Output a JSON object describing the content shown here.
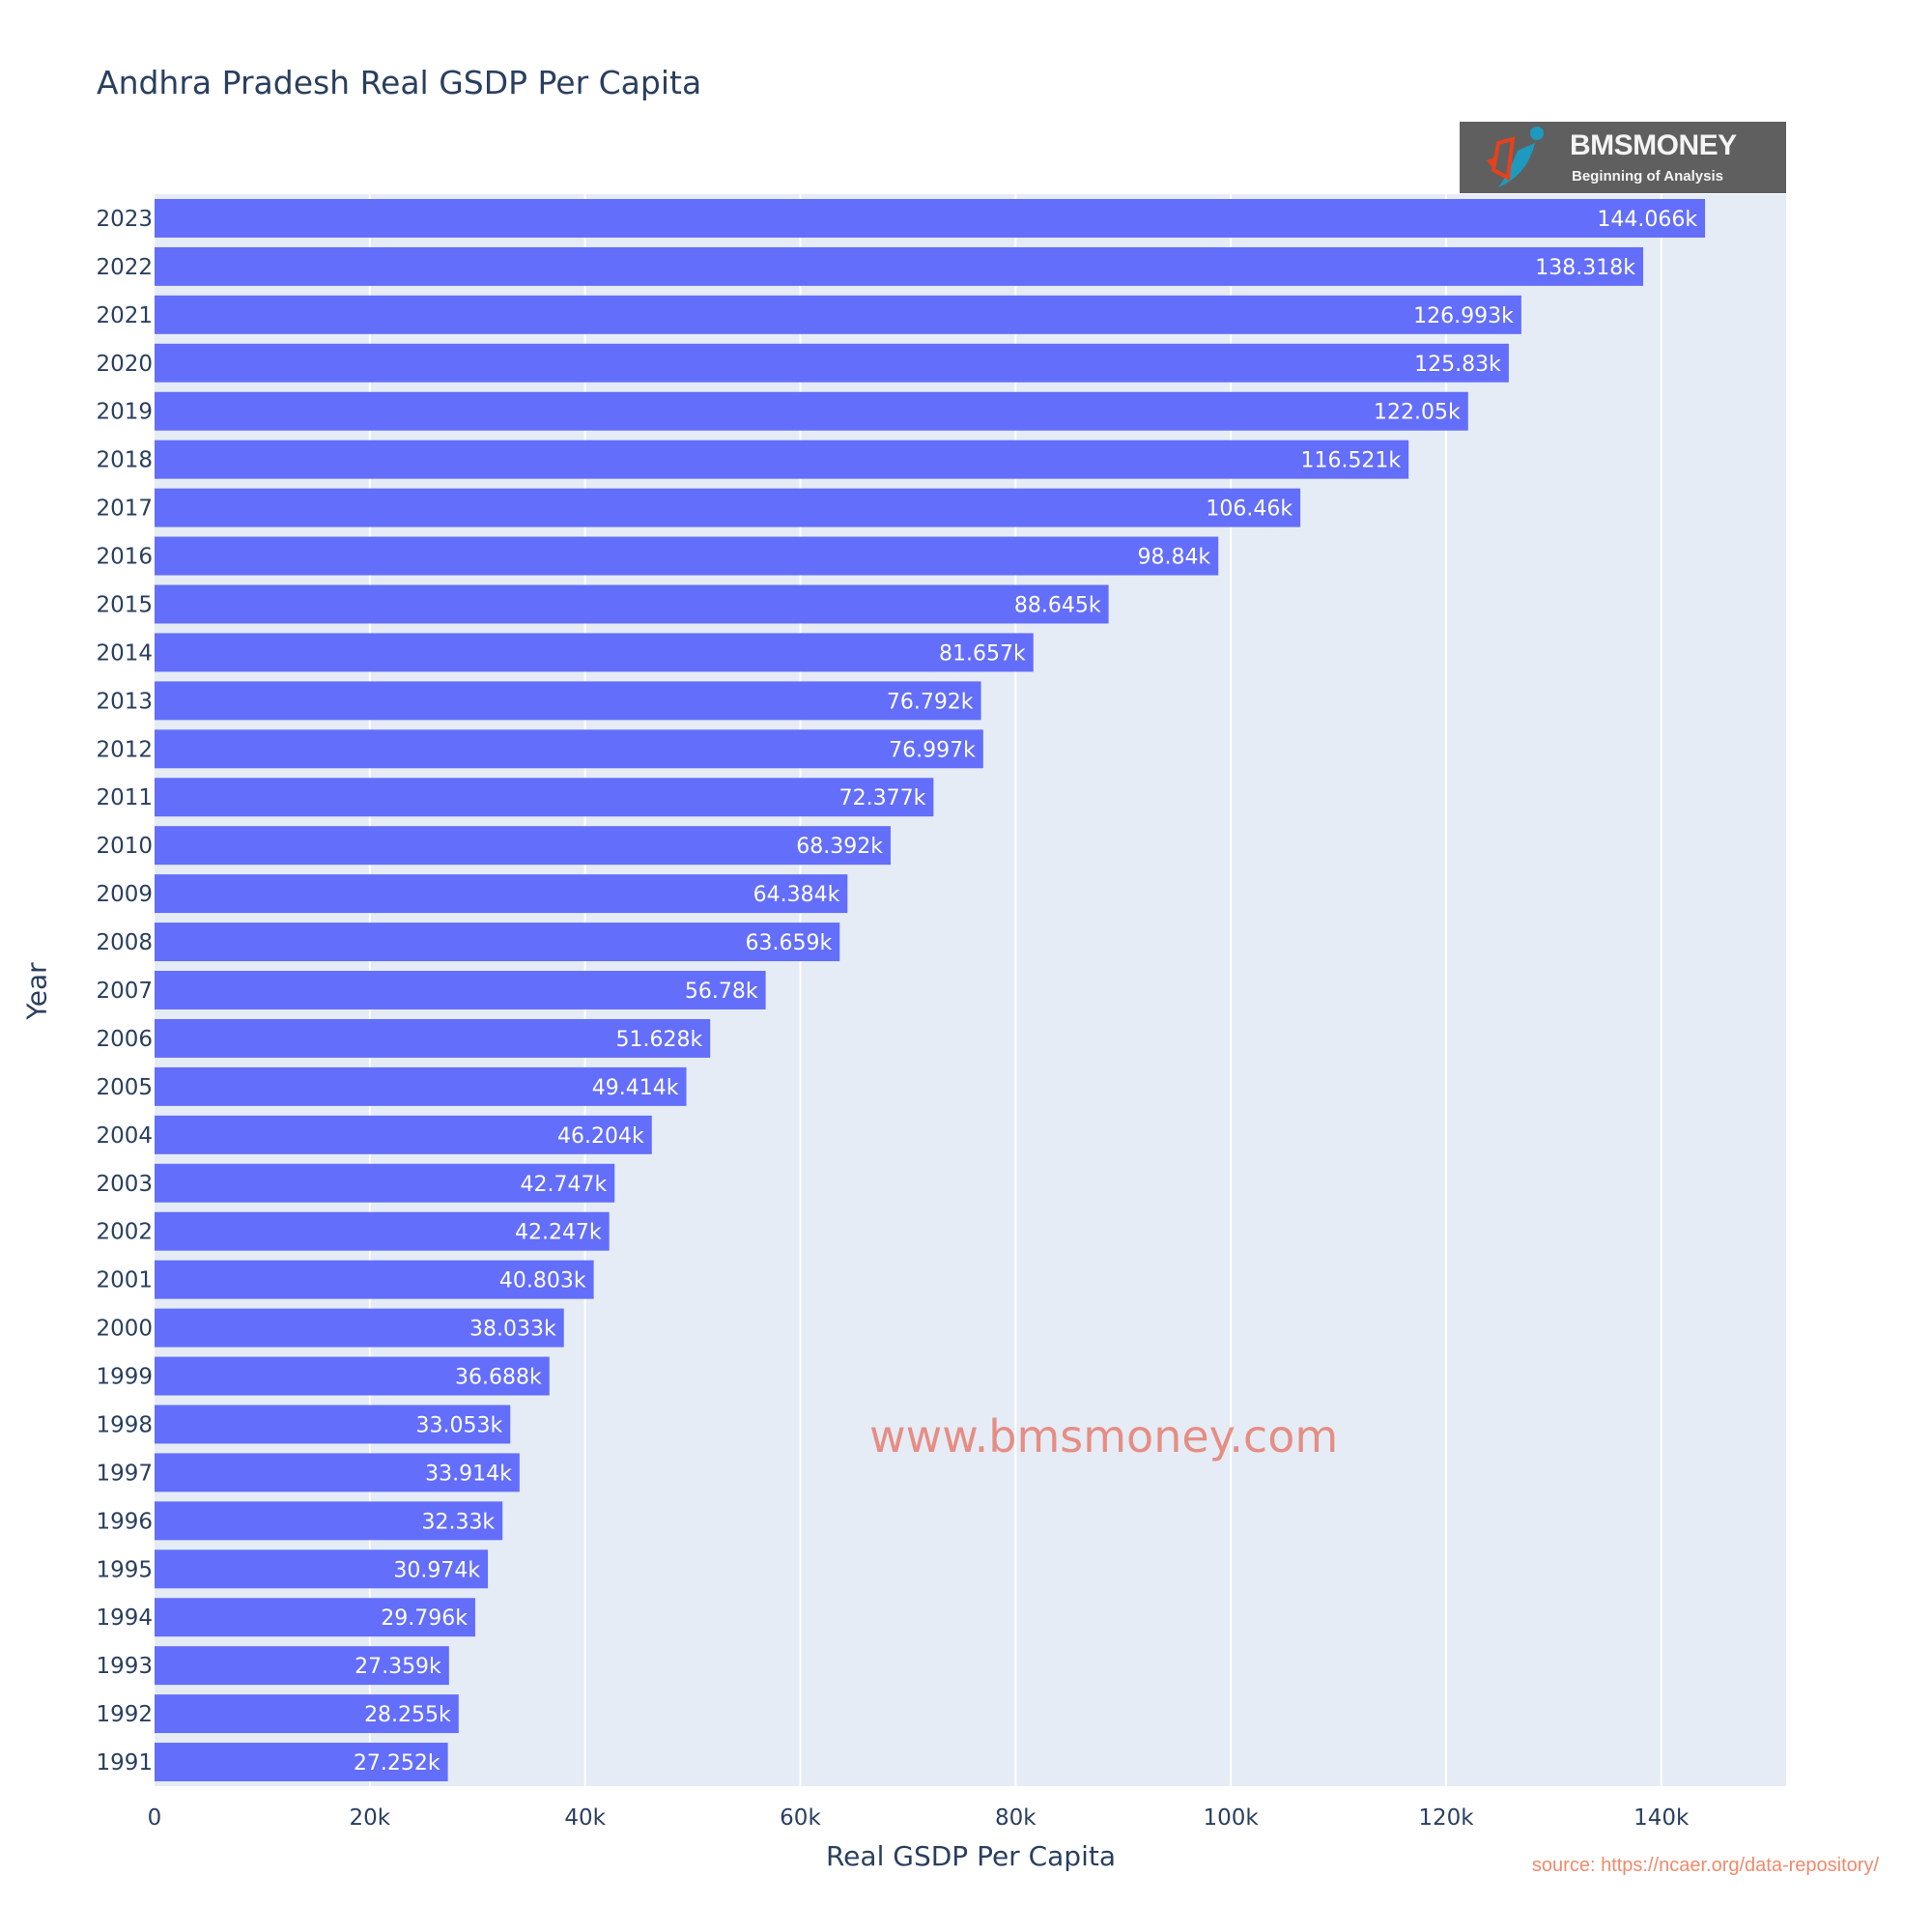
{
  "chart_data": {
    "type": "bar",
    "orientation": "horizontal",
    "title": "Andhra Pradesh Real GSDP Per Capita",
    "xlabel": "Real GSDP Per Capita",
    "ylabel": "Year",
    "xlim": [
      0,
      151600
    ],
    "x_ticks": [
      "0",
      "20k",
      "40k",
      "60k",
      "80k",
      "100k",
      "120k",
      "140k"
    ],
    "x_tick_values": [
      0,
      20000,
      40000,
      60000,
      80000,
      100000,
      120000,
      140000
    ],
    "grid": true,
    "bar_color": "#636efa",
    "plot_bg": "#e5ecf6",
    "categories": [
      "1991",
      "1992",
      "1993",
      "1994",
      "1995",
      "1996",
      "1997",
      "1998",
      "1999",
      "2000",
      "2001",
      "2002",
      "2003",
      "2004",
      "2005",
      "2006",
      "2007",
      "2008",
      "2009",
      "2010",
      "2011",
      "2012",
      "2013",
      "2014",
      "2015",
      "2016",
      "2017",
      "2018",
      "2019",
      "2020",
      "2021",
      "2022",
      "2023"
    ],
    "values": [
      27252,
      28255,
      27359,
      29796,
      30974,
      32330,
      33914,
      33053,
      36688,
      38033,
      40803,
      42247,
      42747,
      46204,
      49414,
      51628,
      56780,
      63659,
      64384,
      68392,
      72377,
      76997,
      76792,
      81657,
      88645,
      98840,
      106460,
      116521,
      122050,
      125830,
      126993,
      138318,
      144066
    ],
    "labels": [
      "27.252k",
      "28.255k",
      "27.359k",
      "29.796k",
      "30.974k",
      "32.33k",
      "33.914k",
      "33.053k",
      "36.688k",
      "38.033k",
      "40.803k",
      "42.247k",
      "42.747k",
      "46.204k",
      "49.414k",
      "51.628k",
      "56.78k",
      "63.659k",
      "64.384k",
      "68.392k",
      "72.377k",
      "76.997k",
      "76.792k",
      "81.657k",
      "88.645k",
      "98.84k",
      "106.46k",
      "116.521k",
      "122.05k",
      "125.83k",
      "126.993k",
      "138.318k",
      "144.066k"
    ]
  },
  "logo": {
    "name": "BMSMONEY",
    "tagline": "Beginning of Analysis"
  },
  "watermark": "www.bmsmoney.com",
  "source": "source: https://ncaer.org/data-repository/"
}
